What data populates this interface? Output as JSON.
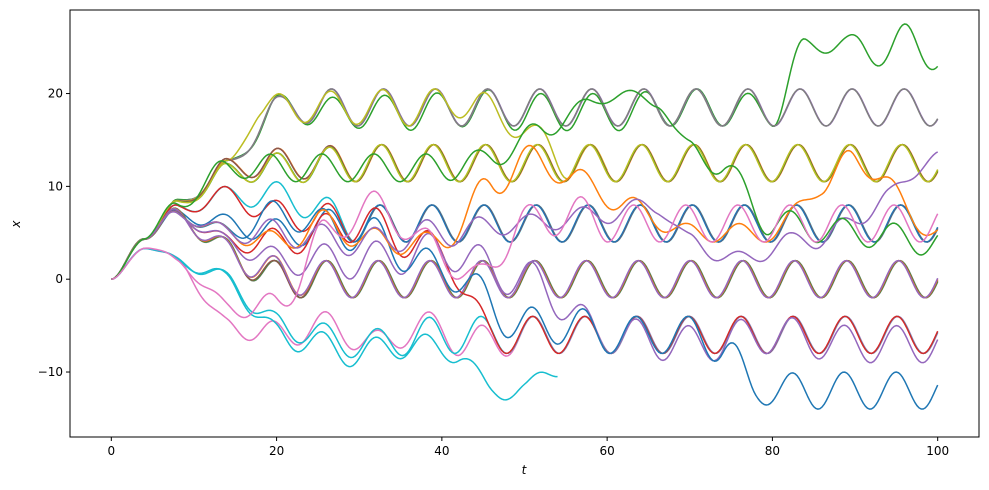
{
  "chart_data": {
    "type": "line",
    "title": "",
    "xlabel": "t",
    "ylabel": "x",
    "xlim": [
      -5,
      105
    ],
    "ylim": [
      -17,
      29
    ],
    "xticks": [
      0,
      20,
      40,
      60,
      80,
      100
    ],
    "yticks": [
      -10,
      0,
      10,
      20
    ],
    "grid": false,
    "legend": "none",
    "wave_period": 6.3,
    "color_cycle": [
      "#1f77b4",
      "#ff7f0e",
      "#2ca02c",
      "#d62728",
      "#9467bd",
      "#8c564b",
      "#e377c2",
      "#7f7f7f",
      "#bcbd22",
      "#17becf"
    ],
    "series": [
      {
        "color": "#2ca02c",
        "x": [
          0,
          4,
          8,
          14,
          20,
          26,
          32,
          38,
          44,
          50,
          56,
          62,
          68,
          74,
          80,
          84,
          88,
          92,
          96,
          100
        ],
        "center": [
          0,
          4.5,
          8,
          12,
          18.5,
          18,
          18,
          18,
          18.5,
          18,
          18,
          18,
          18.5,
          18.5,
          18,
          25,
          25.5,
          24.5,
          25.5,
          24
        ],
        "amp": [
          0,
          0.2,
          0.6,
          0.8,
          1.4,
          1.6,
          1.8,
          2,
          2,
          2,
          2,
          2,
          2,
          2,
          1.6,
          1,
          1,
          1.6,
          2,
          1.5
        ],
        "phase": 0.0
      },
      {
        "color": "#9467bd",
        "x": [
          0,
          4,
          8,
          14,
          20,
          26,
          32,
          40,
          50,
          60,
          70,
          80,
          90,
          100
        ],
        "center": [
          0,
          4.5,
          8,
          12,
          18.5,
          18.5,
          18.5,
          18.5,
          18.5,
          18.5,
          18.5,
          18.5,
          18.5,
          18.5
        ],
        "amp": [
          0,
          0.2,
          0.5,
          0.8,
          1.2,
          2,
          2,
          2,
          2,
          2,
          2,
          2,
          2,
          2
        ],
        "phase": 0.1
      },
      {
        "color": "#7f7f7f",
        "x": [
          0,
          4,
          8,
          14,
          20,
          26,
          32,
          40,
          50,
          60,
          70,
          80,
          90,
          100
        ],
        "center": [
          0,
          4.5,
          8,
          12,
          18.5,
          18.5,
          18.5,
          18.5,
          18.5,
          18.5,
          18.5,
          18.5,
          18.5,
          18.5
        ],
        "amp": [
          0,
          0.2,
          0.5,
          0.8,
          1.2,
          2,
          2,
          2,
          2,
          2,
          2,
          2,
          2,
          2
        ],
        "phase": 0.15
      },
      {
        "color": "#bcbd22",
        "x": [
          0,
          4,
          8,
          14,
          18,
          22,
          28,
          36,
          44,
          50,
          56,
          60
        ],
        "center": [
          0,
          4.5,
          8,
          12,
          18.5,
          18.5,
          18.5,
          18.5,
          19,
          16,
          12.5,
          12.5
        ],
        "amp": [
          0,
          0.2,
          0.5,
          0.8,
          1.3,
          1.6,
          1.8,
          2,
          1.5,
          1,
          2,
          2
        ],
        "phase": 0.25
      },
      {
        "color": "#ff7f0e",
        "x": [
          0,
          4,
          8,
          14,
          20,
          30,
          40,
          50,
          60,
          70,
          80,
          90,
          100
        ],
        "center": [
          0,
          4.5,
          8,
          12,
          12.5,
          12.5,
          12.5,
          12.5,
          12.5,
          12.5,
          12.5,
          12.5,
          12.5
        ],
        "amp": [
          0,
          0.2,
          0.5,
          1,
          1.6,
          2,
          2,
          2,
          2,
          2,
          2,
          2,
          2
        ],
        "phase": 0.3
      },
      {
        "color": "#8c564b",
        "x": [
          0,
          4,
          8,
          14,
          20,
          30,
          40,
          50,
          60,
          70,
          80,
          90,
          100
        ],
        "center": [
          0,
          4.5,
          8,
          12,
          12.5,
          12.5,
          12.5,
          12.5,
          12.5,
          12.5,
          12.5,
          12.5,
          12.5
        ],
        "amp": [
          0,
          0.2,
          0.5,
          1,
          1.6,
          2,
          2,
          2,
          2,
          2,
          2,
          2,
          2
        ],
        "phase": 0.35
      },
      {
        "color": "#2ca02c",
        "x": [
          0,
          4,
          8,
          14,
          20,
          30,
          40,
          50,
          60,
          70,
          80,
          90,
          100
        ],
        "center": [
          0,
          4.5,
          8,
          11.5,
          12,
          12.5,
          12.5,
          12.5,
          12.5,
          12.5,
          12.5,
          12.5,
          12.5
        ],
        "amp": [
          0,
          0.2,
          0.5,
          1,
          1.6,
          2,
          2,
          2,
          2,
          2,
          2,
          2,
          2
        ],
        "phase": 0.4
      },
      {
        "color": "#bcbd22",
        "x": [
          0,
          4,
          8,
          14,
          20,
          30,
          40,
          50,
          60,
          70,
          80,
          90,
          100
        ],
        "center": [
          0,
          4.5,
          8,
          11.5,
          12,
          12.5,
          12.5,
          12.5,
          12.5,
          12.5,
          12.5,
          12.5,
          12.5
        ],
        "amp": [
          0,
          0.2,
          0.5,
          1,
          1.6,
          2,
          2,
          2,
          2,
          2,
          2,
          2,
          2
        ],
        "phase": 0.45
      },
      {
        "color": "#17becf",
        "x": [
          0,
          4,
          8,
          14,
          20,
          30,
          40,
          50,
          60,
          70,
          80,
          90,
          100
        ],
        "center": [
          0,
          4.5,
          7.5,
          9,
          9,
          6,
          6,
          6,
          6,
          6,
          6,
          6,
          6
        ],
        "amp": [
          0,
          0.2,
          0.6,
          1,
          1.5,
          2,
          2,
          2,
          2,
          2,
          2,
          2,
          2
        ],
        "phase": 0.5
      },
      {
        "color": "#d62728",
        "x": [
          0,
          4,
          8,
          14,
          20,
          30,
          40,
          50,
          60,
          70,
          80,
          90,
          100
        ],
        "center": [
          0,
          4.5,
          7.5,
          9,
          7,
          6,
          6,
          6,
          6,
          6,
          6,
          6,
          6
        ],
        "amp": [
          0,
          0.2,
          0.6,
          1,
          1.5,
          2,
          2,
          2,
          2,
          2,
          2,
          2,
          2
        ],
        "phase": 0.55
      },
      {
        "color": "#1f77b4",
        "x": [
          0,
          4,
          8,
          14,
          20,
          30,
          40,
          50,
          60,
          70,
          80,
          90,
          100
        ],
        "center": [
          0,
          4.5,
          7,
          6,
          5,
          6,
          6,
          6,
          6,
          6,
          6,
          6,
          6
        ],
        "amp": [
          0,
          0.2,
          0.6,
          1,
          1.5,
          2,
          2,
          2,
          2,
          2,
          2,
          2,
          2
        ],
        "phase": 0.6
      },
      {
        "color": "#7f7f7f",
        "x": [
          0,
          4,
          8,
          14,
          20,
          26,
          32,
          40,
          50,
          60,
          70,
          80,
          90,
          100
        ],
        "center": [
          0,
          4.5,
          7,
          3,
          0,
          0,
          0,
          0,
          0,
          0,
          0,
          0,
          0,
          0
        ],
        "amp": [
          0,
          0.2,
          0.8,
          1.5,
          2,
          2,
          2,
          2,
          2,
          2,
          2,
          2,
          2,
          2
        ],
        "phase": 0.65
      },
      {
        "color": "#2ca02c",
        "x": [
          0,
          4,
          8,
          14,
          20,
          26,
          32,
          40,
          50,
          60,
          70,
          80,
          90,
          100
        ],
        "center": [
          0,
          4.5,
          7,
          3,
          0,
          0,
          0,
          0,
          0,
          0,
          0,
          0,
          0,
          0
        ],
        "amp": [
          0,
          0.2,
          0.8,
          1.5,
          2,
          2,
          2,
          2,
          2,
          2,
          2,
          2,
          2,
          2
        ],
        "phase": 0.7
      },
      {
        "color": "#8c564b",
        "x": [
          0,
          4,
          8,
          14,
          20,
          26,
          32,
          40,
          50,
          60,
          70,
          80,
          90,
          100
        ],
        "center": [
          0,
          4.5,
          7,
          3,
          0,
          0,
          0,
          0,
          0,
          0,
          0,
          0,
          0,
          0
        ],
        "amp": [
          0,
          0.2,
          0.8,
          1.5,
          2,
          2,
          2,
          2,
          2,
          2,
          2,
          2,
          2,
          2
        ],
        "phase": 0.75
      },
      {
        "color": "#ff7f0e",
        "x": [
          0,
          4,
          8,
          14,
          20,
          26,
          32,
          40,
          50,
          60,
          70,
          80,
          90,
          100
        ],
        "center": [
          0,
          4.5,
          7,
          3,
          0.5,
          0,
          0,
          0,
          0,
          0,
          0,
          0,
          0,
          0
        ],
        "amp": [
          0,
          0.2,
          0.8,
          1.5,
          2,
          2,
          2,
          2,
          2,
          2,
          2,
          2,
          2,
          2
        ],
        "phase": 0.8
      },
      {
        "color": "#9467bd",
        "x": [
          0,
          4,
          8,
          14,
          20,
          26,
          32,
          40,
          50,
          60,
          70,
          80,
          90,
          100
        ],
        "center": [
          0,
          4.5,
          7,
          3,
          0.5,
          0,
          0,
          0,
          0,
          0,
          0,
          0,
          0,
          0
        ],
        "amp": [
          0,
          0.2,
          0.8,
          1.5,
          2,
          2,
          2,
          2,
          2,
          2,
          2,
          2,
          2,
          2
        ],
        "phase": 0.85
      },
      {
        "color": "#e377c2",
        "x": [
          0,
          4,
          8,
          14,
          20,
          26,
          32,
          38,
          44,
          50,
          60,
          70,
          80,
          90,
          100
        ],
        "center": [
          0,
          3.5,
          2,
          -5,
          -6,
          -5,
          -7,
          -5,
          -7,
          -6,
          -6,
          -6,
          -6,
          -6,
          -6
        ],
        "amp": [
          0,
          0.2,
          0.6,
          1,
          1.5,
          1.5,
          1.5,
          1.5,
          2,
          2,
          2,
          2,
          2,
          2,
          2
        ],
        "phase": 0.9
      },
      {
        "color": "#17becf",
        "x": [
          0,
          4,
          8,
          14,
          20,
          30,
          40,
          50,
          60,
          70,
          80,
          90,
          100
        ],
        "center": [
          0,
          3.5,
          2,
          0,
          -5,
          -7,
          -6,
          -6,
          -6,
          -6,
          -6,
          -6,
          -6
        ],
        "amp": [
          0,
          0.2,
          0.6,
          1,
          1.5,
          1.5,
          2,
          2,
          2,
          2,
          2,
          2,
          2
        ],
        "phase": 0.95
      },
      {
        "color": "#d62728",
        "x": [
          0,
          4,
          8,
          14,
          20,
          30,
          40,
          46,
          50,
          60,
          70,
          80,
          90,
          100
        ],
        "center": [
          0,
          4.5,
          7,
          4,
          4,
          6,
          3,
          -6,
          -6,
          -6,
          -6,
          -6,
          -6,
          -6
        ],
        "amp": [
          0,
          0.2,
          0.6,
          1,
          1.5,
          2,
          2,
          2,
          2,
          2,
          2,
          2,
          2,
          2
        ],
        "phase": 1.0
      },
      {
        "color": "#9467bd",
        "x": [
          0,
          4,
          8,
          14,
          20,
          30,
          40,
          50,
          60,
          70,
          80,
          90,
          100
        ],
        "center": [
          0,
          4.5,
          7,
          4,
          2,
          2,
          3,
          0,
          -6,
          -7,
          -6,
          -7,
          -7
        ],
        "amp": [
          0,
          0.2,
          0.6,
          1,
          1.5,
          2,
          2,
          2,
          2,
          2,
          2,
          2,
          2
        ],
        "phase": 1.05
      },
      {
        "color": "#1f77b4",
        "x": [
          0,
          4,
          8,
          14,
          20,
          30,
          40,
          50,
          56,
          60,
          70,
          74,
          78,
          84,
          90,
          100
        ],
        "center": [
          0,
          4.5,
          7,
          5,
          7,
          5,
          1,
          -5,
          -5,
          -6,
          -6,
          -7,
          -12,
          -12,
          -12,
          -12
        ],
        "amp": [
          0,
          0.2,
          0.6,
          1,
          1.5,
          2,
          2,
          2,
          2,
          2,
          2,
          2,
          1.5,
          2,
          2,
          2
        ],
        "phase": 1.1
      },
      {
        "color": "#17becf",
        "x": [
          0,
          4,
          8,
          14,
          20,
          30,
          36,
          42,
          46,
          50,
          54
        ],
        "center": [
          0,
          3.5,
          2,
          0,
          -6,
          -8,
          -7,
          -8,
          -12,
          -12,
          -9
        ],
        "amp": [
          0,
          0.2,
          0.6,
          1,
          1.5,
          1.5,
          1.5,
          1,
          1,
          1,
          1.5
        ],
        "phase": 1.15
      },
      {
        "color": "#ff7f0e",
        "x": [
          0,
          4,
          8,
          14,
          20,
          26,
          32,
          40,
          46,
          50,
          56,
          62,
          70,
          80,
          86,
          90,
          100
        ],
        "center": [
          0,
          4.5,
          7,
          5,
          4,
          6,
          4,
          4,
          10,
          13,
          11,
          8,
          5,
          5,
          10,
          13,
          5
        ],
        "amp": [
          0,
          0.2,
          0.6,
          1,
          1.2,
          1.5,
          1.5,
          1,
          1.5,
          1.5,
          1,
          1,
          1,
          1,
          1,
          1.5,
          0.8
        ],
        "phase": 1.2
      },
      {
        "color": "#9467bd",
        "x": [
          0,
          4,
          8,
          14,
          20,
          30,
          40,
          50,
          60,
          66,
          70,
          76,
          82,
          88,
          94,
          100
        ],
        "center": [
          0,
          4.5,
          7,
          5,
          5,
          4,
          5,
          6,
          7,
          8,
          4,
          2,
          4,
          5,
          9,
          13.5
        ],
        "amp": [
          0,
          0.2,
          0.6,
          1,
          1.5,
          1.5,
          1.5,
          1,
          1,
          1,
          1,
          1,
          1,
          1.5,
          1,
          0.5
        ],
        "phase": 1.25
      },
      {
        "color": "#2ca02c",
        "x": [
          0,
          4,
          8,
          14,
          20,
          30,
          40,
          46,
          52,
          58,
          62,
          66,
          70,
          74,
          80,
          90,
          100
        ],
        "center": [
          0,
          4.5,
          8,
          12,
          12,
          12,
          12,
          13,
          16,
          19,
          20,
          19,
          14,
          12,
          6,
          5,
          4
        ],
        "amp": [
          0,
          0.2,
          0.6,
          1,
          1.5,
          1.5,
          1.5,
          1,
          1,
          0.5,
          0.5,
          0.5,
          1,
          1,
          1.5,
          1.5,
          1.5
        ],
        "phase": 1.3
      },
      {
        "color": "#e377c2",
        "x": [
          0,
          4,
          8,
          14,
          20,
          26,
          32,
          38,
          44,
          50,
          56,
          60,
          70,
          80,
          90,
          100
        ],
        "center": [
          0,
          3.5,
          2,
          -3,
          -3,
          5,
          8,
          4,
          0,
          6,
          7,
          6,
          6,
          6,
          6,
          6
        ],
        "amp": [
          0,
          0.2,
          0.6,
          1,
          1.5,
          1.5,
          1.5,
          1.5,
          1.5,
          2,
          2,
          2,
          2,
          2,
          2,
          2
        ],
        "phase": 1.35
      }
    ]
  }
}
